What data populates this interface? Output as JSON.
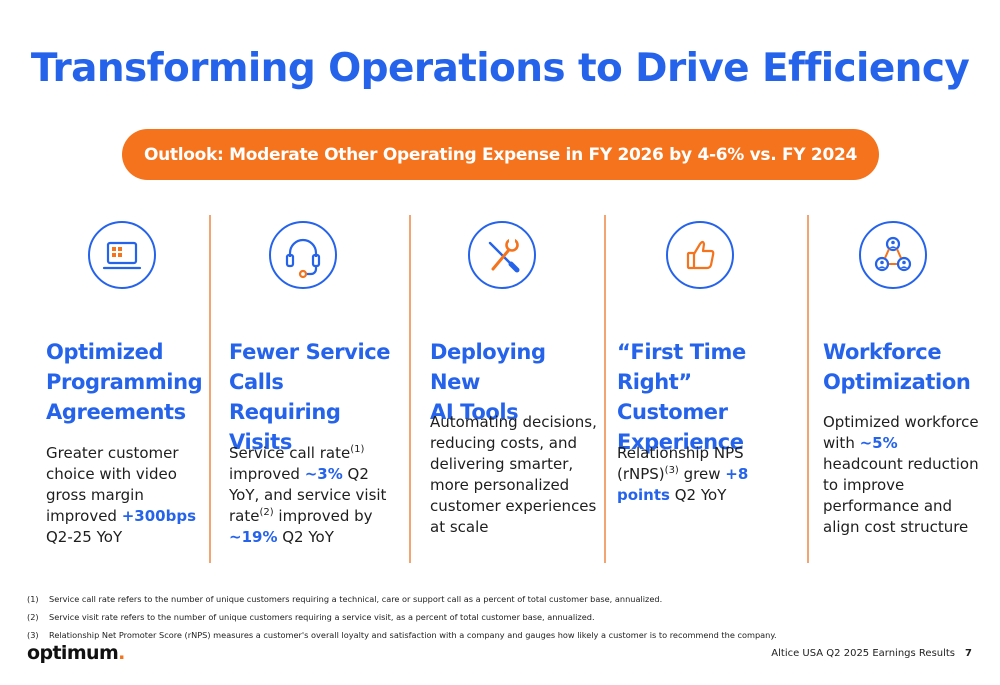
{
  "title": "Transforming Operations to Drive Efficiency",
  "outlook": "Outlook: Moderate Other Operating Expense in FY 2026 by 4-6% vs. FY 2024",
  "columns": [
    {
      "icon": "tv-screen-icon",
      "heading": [
        "Optimized",
        "Programming",
        "Agreements"
      ],
      "body": {
        "t1": "Greater customer choice with video gross margin improved ",
        "h1": "+300bps",
        "t2": " Q2-25 YoY"
      }
    },
    {
      "icon": "headset-icon",
      "heading": [
        "Fewer Service",
        "Calls Requiring",
        "Visits"
      ],
      "body": {
        "t1": "Service call rate",
        "s1": "(1)",
        "t2": " improved ",
        "h1": "~3%",
        "t3": " Q2 YoY, and service visit rate",
        "s2": "(2)",
        "t4": " improved by ",
        "h2": "~19%",
        "t5": " Q2 YoY"
      }
    },
    {
      "icon": "wrench-screwdriver-icon",
      "heading": [
        "Deploying New",
        "AI Tools"
      ],
      "body": {
        "t1": "Automating decisions, reducing costs, and delivering smarter, more personalized customer experiences at scale"
      }
    },
    {
      "icon": "thumbs-up-icon",
      "heading": [
        "“First Time Right”",
        "Customer",
        "Experience"
      ],
      "body": {
        "t1": "Relationship NPS (rNPS)",
        "s1": "(3)",
        "t2": " grew ",
        "h1": "+8 points",
        "t3": " Q2 YoY"
      }
    },
    {
      "icon": "workforce-network-icon",
      "heading": [
        "Workforce",
        "Optimization"
      ],
      "body": {
        "t1": "Optimized workforce with ",
        "h1": "~5%",
        "t2": " headcount reduction to improve performance and align cost structure"
      }
    }
  ],
  "footnotes": [
    {
      "num": "(1)",
      "text": "Service call rate refers to the number of unique customers requiring a technical, care or support call as a percent of total customer base, annualized."
    },
    {
      "num": "(2)",
      "text": "Service visit rate refers to the number of unique customers requiring a service visit, as a percent of total customer base, annualized."
    },
    {
      "num": "(3)",
      "text": "Relationship Net Promoter Score (rNPS) measures a customer's overall loyalty and satisfaction with a company and gauges how likely a customer is to recommend the company."
    }
  ],
  "logo": {
    "text": "optimum",
    "dot": "."
  },
  "footer": {
    "text": "Altice USA Q2 2025 Earnings Results",
    "page": "7"
  },
  "colors": {
    "brand_blue": "#2563eb",
    "accent_orange": "#f4731c",
    "divider": "#f2a572"
  }
}
